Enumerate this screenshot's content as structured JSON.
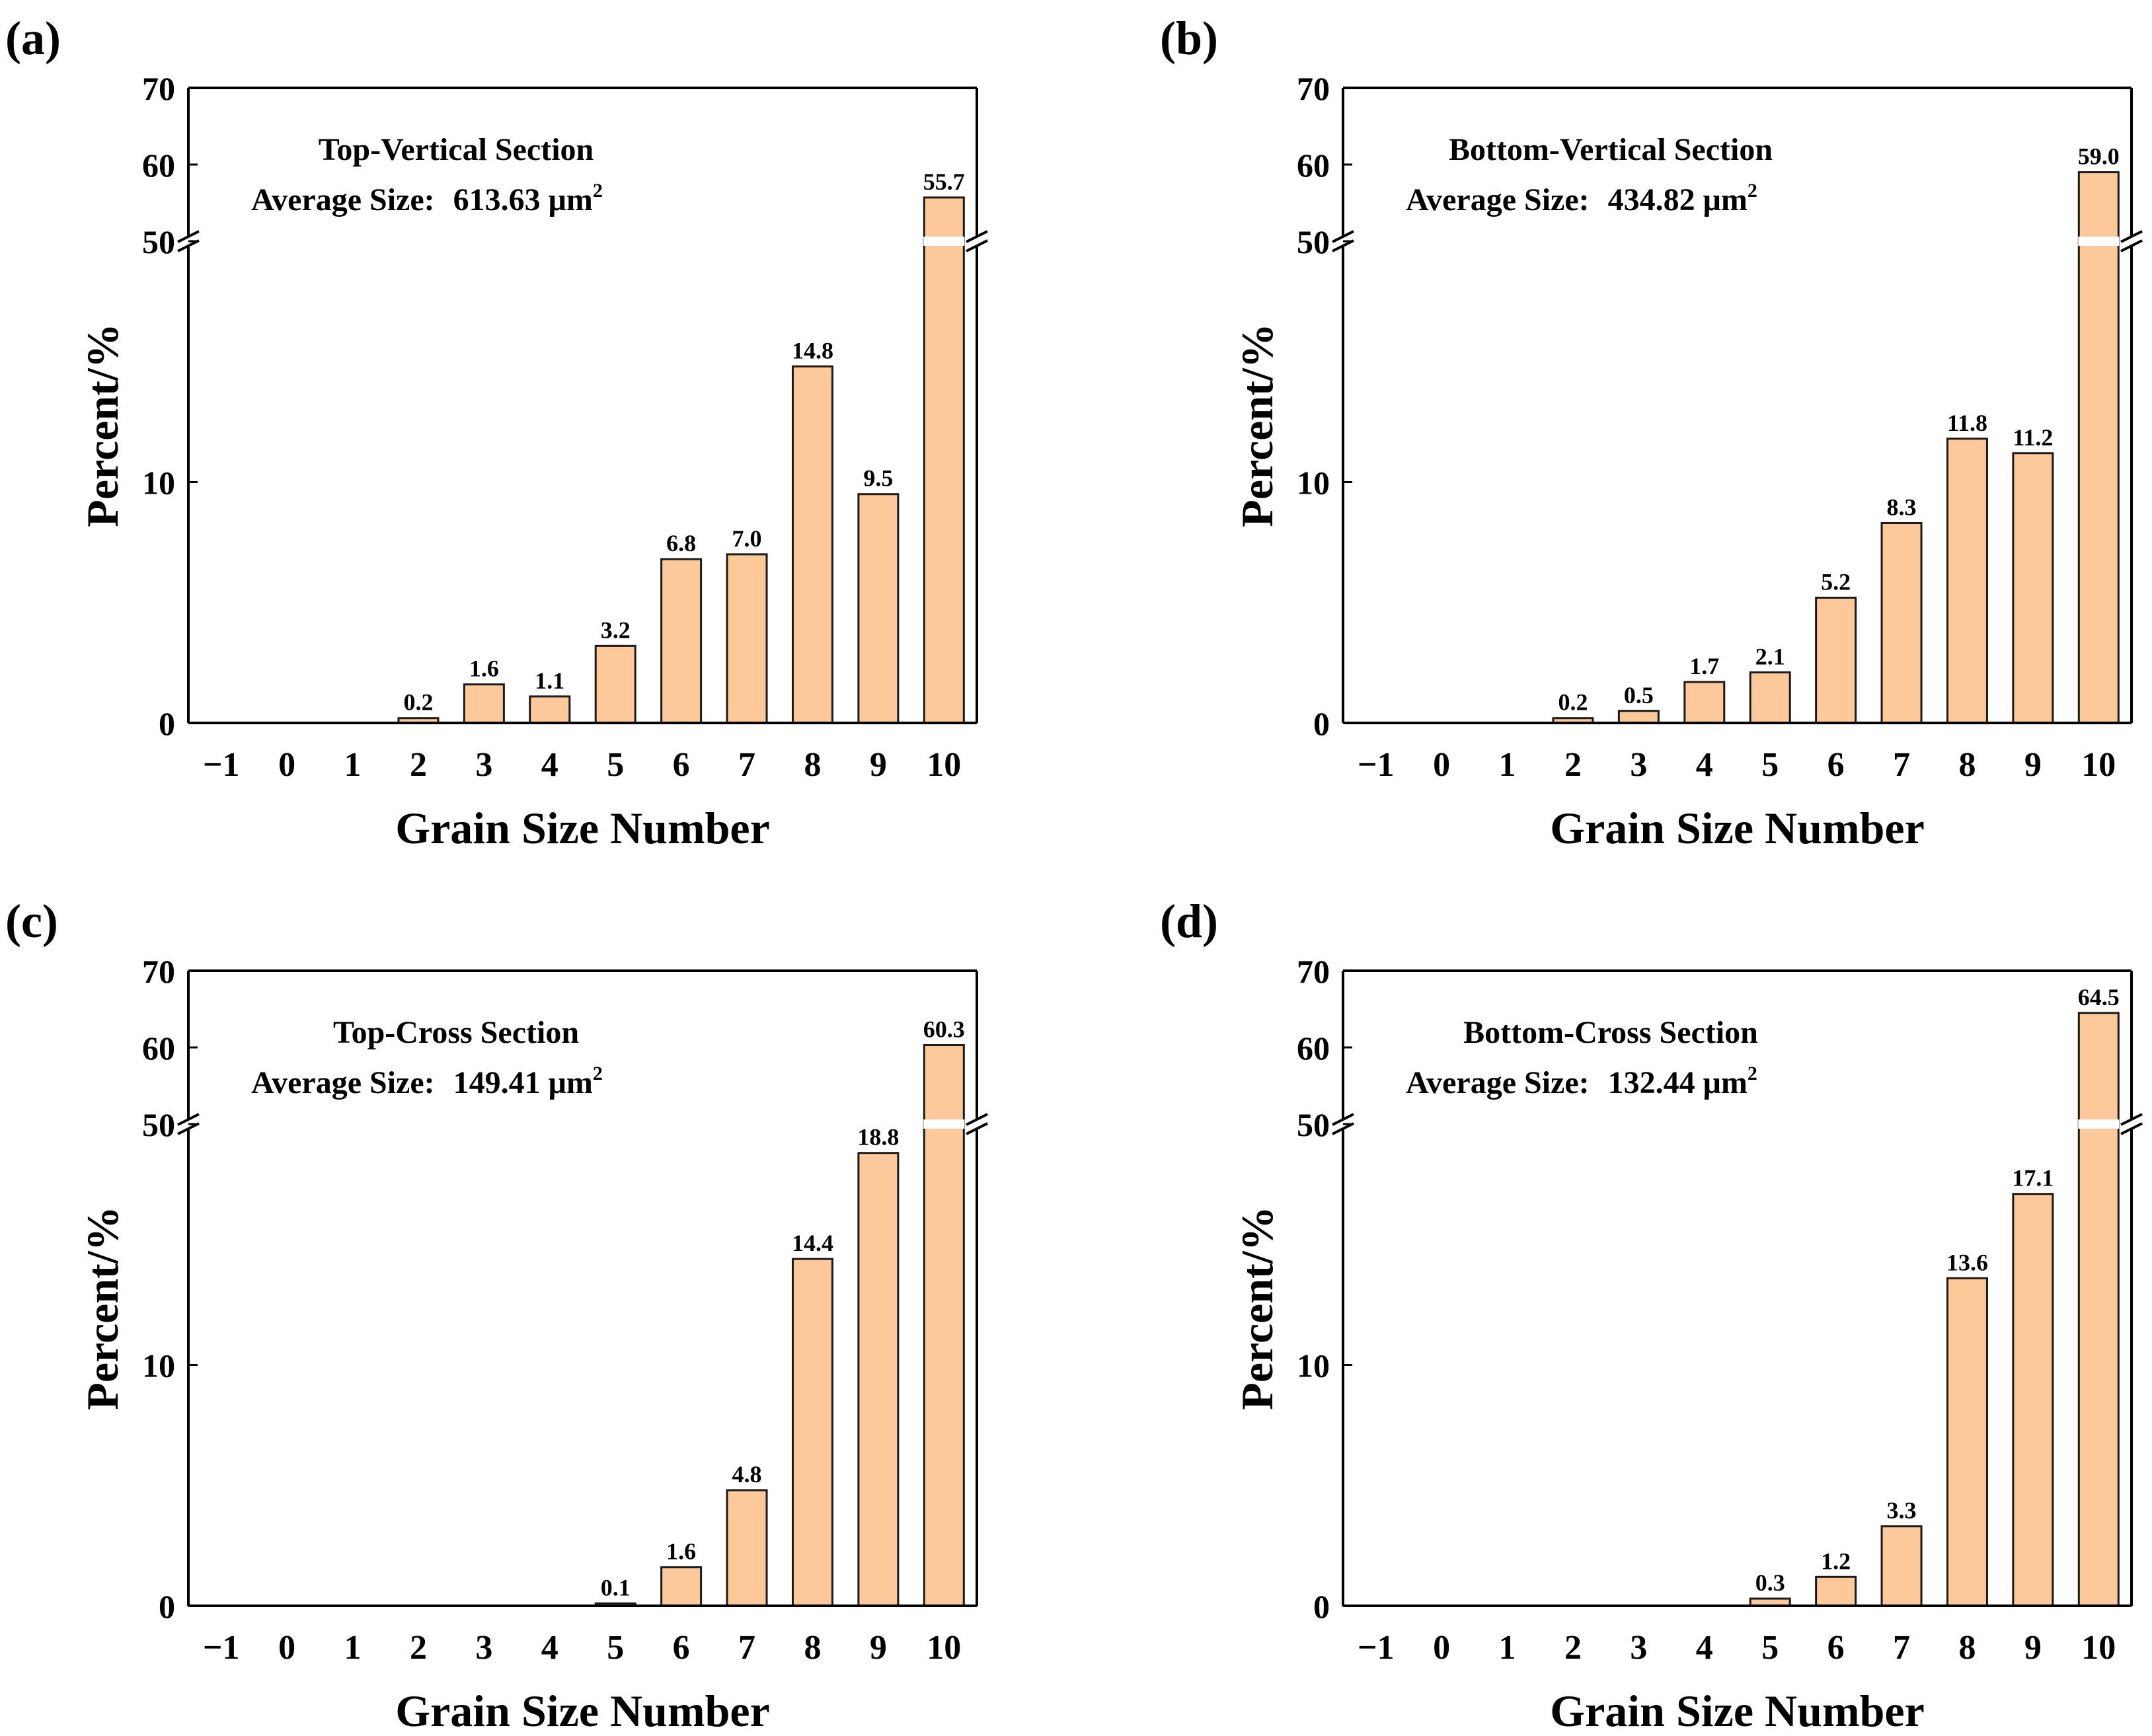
{
  "figure": {
    "colors": {
      "bar_fill": "#fdc89a",
      "bar_stroke": "#1a1a1a",
      "axis": "#000000"
    }
  },
  "chart_data": [
    {
      "type": "bar",
      "panel_label": "(a)",
      "title": "Top-Vertical Section",
      "subtitle_prefix": "Average Size:",
      "subtitle_value": "613.63 μm",
      "subtitle_sup": "2",
      "xlabel": "Grain Size Number",
      "ylabel": "Percent/%",
      "categories": [
        "−1",
        "0",
        "1",
        "2",
        "3",
        "4",
        "5",
        "6",
        "7",
        "8",
        "9",
        "10"
      ],
      "values": [
        0,
        0,
        0,
        0.2,
        1.6,
        1.1,
        3.2,
        6.8,
        7.0,
        14.8,
        9.5,
        55.7
      ],
      "value_labels": [
        "",
        "",
        "",
        "0.2",
        "1.6",
        "1.1",
        "3.2",
        "6.8",
        "7.0",
        "14.8",
        "9.5",
        "55.7"
      ],
      "y_axis_break": {
        "lower_range": [
          0,
          20
        ],
        "upper_range": [
          50,
          70
        ]
      },
      "yticks": [
        "0",
        "10",
        "50",
        "60",
        "70"
      ]
    },
    {
      "type": "bar",
      "panel_label": "(b)",
      "title": "Bottom-Vertical Section",
      "subtitle_prefix": "Average Size:",
      "subtitle_value": "434.82 μm",
      "subtitle_sup": "2",
      "xlabel": "Grain Size Number",
      "ylabel": "Percent/%",
      "categories": [
        "−1",
        "0",
        "1",
        "2",
        "3",
        "4",
        "5",
        "6",
        "7",
        "8",
        "9",
        "10"
      ],
      "values": [
        0,
        0,
        0,
        0.2,
        0.5,
        1.7,
        2.1,
        5.2,
        8.3,
        11.8,
        11.2,
        59.0
      ],
      "value_labels": [
        "",
        "",
        "",
        "0.2",
        "0.5",
        "1.7",
        "2.1",
        "5.2",
        "8.3",
        "11.8",
        "11.2",
        "59.0"
      ],
      "y_axis_break": {
        "lower_range": [
          0,
          20
        ],
        "upper_range": [
          50,
          70
        ]
      },
      "yticks": [
        "0",
        "10",
        "50",
        "60",
        "70"
      ]
    },
    {
      "type": "bar",
      "panel_label": "(c)",
      "title": "Top-Cross Section",
      "subtitle_prefix": "Average Size:",
      "subtitle_value": "149.41 μm",
      "subtitle_sup": "2",
      "xlabel": "Grain Size Number",
      "ylabel": "Percent/%",
      "categories": [
        "−1",
        "0",
        "1",
        "2",
        "3",
        "4",
        "5",
        "6",
        "7",
        "8",
        "9",
        "10"
      ],
      "values": [
        0,
        0,
        0,
        0,
        0,
        0,
        0.1,
        1.6,
        4.8,
        14.4,
        18.8,
        60.3
      ],
      "value_labels": [
        "",
        "",
        "",
        "",
        "",
        "",
        "0.1",
        "1.6",
        "4.8",
        "14.4",
        "18.8",
        "60.3"
      ],
      "y_axis_break": {
        "lower_range": [
          0,
          20
        ],
        "upper_range": [
          50,
          70
        ]
      },
      "yticks": [
        "0",
        "10",
        "50",
        "60",
        "70"
      ]
    },
    {
      "type": "bar",
      "panel_label": "(d)",
      "title": "Bottom-Cross Section",
      "subtitle_prefix": "Average Size:",
      "subtitle_value": "132.44 μm",
      "subtitle_sup": "2",
      "xlabel": "Grain Size Number",
      "ylabel": "Percent/%",
      "categories": [
        "−1",
        "0",
        "1",
        "2",
        "3",
        "4",
        "5",
        "6",
        "7",
        "8",
        "9",
        "10"
      ],
      "values": [
        0,
        0,
        0,
        0,
        0,
        0,
        0.3,
        1.2,
        3.3,
        13.6,
        17.1,
        64.5
      ],
      "value_labels": [
        "",
        "",
        "",
        "",
        "",
        "",
        "0.3",
        "1.2",
        "3.3",
        "13.6",
        "17.1",
        "64.5"
      ],
      "y_axis_break": {
        "lower_range": [
          0,
          20
        ],
        "upper_range": [
          50,
          70
        ]
      },
      "yticks": [
        "0",
        "10",
        "50",
        "60",
        "70"
      ]
    }
  ]
}
